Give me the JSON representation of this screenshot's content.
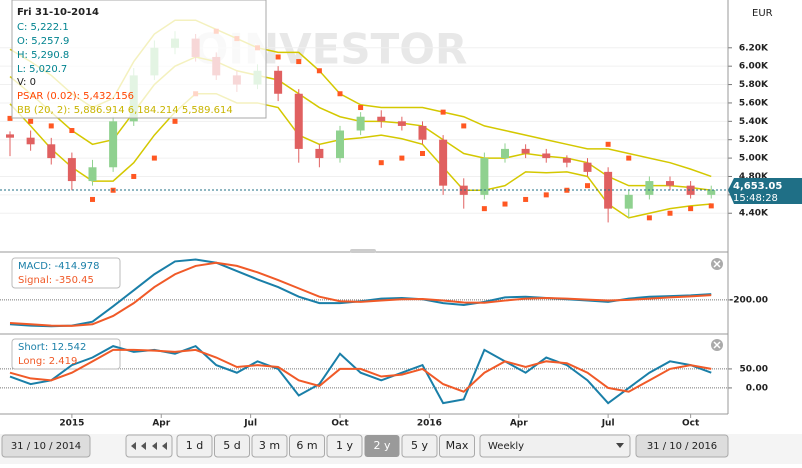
{
  "tooltip": {
    "date": "Fri 31-10-2014",
    "close": "C: 5,222.1",
    "open": "O: 5,257.9",
    "high": "H: 5,290.8",
    "low": "L: 5,020.7",
    "volume": "V: 0",
    "psar": "PSAR (0.02): 5,432.156",
    "bb": "BB (20, 2): 5,886.914 6,184.214 5,589.614"
  },
  "watermark": "OINVESTOR",
  "chart_data": [
    {
      "type": "candlestick",
      "currency": "EUR",
      "x": [
        0,
        3,
        6,
        9,
        12,
        15,
        18,
        21,
        24,
        27,
        30,
        33,
        36,
        39,
        42,
        45,
        48,
        51,
        54,
        57,
        60,
        63,
        66,
        69,
        72,
        75,
        78,
        81,
        84,
        87,
        90,
        93,
        96,
        99,
        102
      ],
      "open": [
        5258,
        5222,
        5150,
        5000,
        4750,
        4900,
        5400,
        5900,
        6200,
        6300,
        6100,
        5900,
        5800,
        5950,
        5700,
        5100,
        5000,
        5300,
        5450,
        5400,
        5350,
        5200,
        4700,
        4600,
        5000,
        5100,
        5050,
        5000,
        4950,
        4850,
        4450,
        4600,
        4750,
        4700,
        4600
      ],
      "high": [
        5291,
        5300,
        5220,
        5060,
        4980,
        5450,
        5980,
        6280,
        6380,
        6350,
        6150,
        5950,
        6020,
        6000,
        5750,
        5150,
        5350,
        5500,
        5520,
        5450,
        5400,
        5250,
        4780,
        5060,
        5160,
        5150,
        5100,
        5030,
        5000,
        4900,
        4650,
        4800,
        4800,
        4750,
        4700
      ],
      "low": [
        5021,
        5080,
        4930,
        4650,
        4700,
        4850,
        5350,
        5850,
        6130,
        6050,
        5850,
        5720,
        5750,
        5620,
        4950,
        4900,
        4950,
        5250,
        5330,
        5300,
        5150,
        4600,
        4450,
        4550,
        4950,
        5000,
        4950,
        4900,
        4800,
        4300,
        4350,
        4550,
        4650,
        4560,
        4560
      ],
      "close": [
        5222,
        5150,
        5000,
        4750,
        4900,
        5400,
        5900,
        6200,
        6300,
        6100,
        5900,
        5800,
        5950,
        5700,
        5100,
        5000,
        5300,
        5450,
        5400,
        5350,
        5200,
        4700,
        4600,
        5000,
        5100,
        5050,
        5000,
        4950,
        4850,
        4450,
        4600,
        4750,
        4700,
        4600,
        4653
      ],
      "psar": [
        5432,
        5400,
        5350,
        5300,
        4550,
        4650,
        4800,
        5000,
        5400,
        5700,
        6380,
        6300,
        6200,
        6100,
        6050,
        5950,
        5700,
        5550,
        4950,
        5000,
        5050,
        5500,
        5350,
        4450,
        4500,
        4550,
        4600,
        4650,
        4700,
        5150,
        5000,
        4350,
        4400,
        4450,
        4480
      ],
      "bb_upper": [
        6184,
        6050,
        5900,
        5700,
        5550,
        5650,
        6050,
        6350,
        6500,
        6500,
        6400,
        6300,
        6200,
        6150,
        6150,
        5950,
        5700,
        5580,
        5550,
        5550,
        5550,
        5500,
        5450,
        5350,
        5300,
        5250,
        5200,
        5150,
        5100,
        5100,
        5050,
        5000,
        4950,
        4880,
        4800
      ],
      "bb_middle": [
        5887,
        5700,
        5500,
        5300,
        5150,
        5200,
        5500,
        5800,
        6000,
        6100,
        6050,
        5950,
        5900,
        5850,
        5700,
        5550,
        5450,
        5400,
        5400,
        5380,
        5350,
        5200,
        5050,
        5000,
        5000,
        5050,
        5020,
        5000,
        4950,
        4800,
        4700,
        4700,
        4700,
        4680,
        4650
      ],
      "bb_lower": [
        5590,
        5350,
        5100,
        4900,
        4750,
        4750,
        4950,
        5250,
        5500,
        5700,
        5700,
        5600,
        5600,
        5550,
        5250,
        5150,
        5200,
        5220,
        5250,
        5210,
        5150,
        4900,
        4650,
        4650,
        4700,
        4850,
        4840,
        4850,
        4800,
        4500,
        4350,
        4400,
        4450,
        4480,
        4500
      ],
      "up_color": "#8fd18f",
      "down_color": "#e06060",
      "psar_color": "#ff5722",
      "bb_color": "#d4c800",
      "xlim": [
        0,
        104
      ],
      "xticks": [
        {
          "value": 9,
          "label": "2015"
        },
        {
          "value": 22,
          "label": "Apr"
        },
        {
          "value": 35,
          "label": "Jul"
        },
        {
          "value": 48,
          "label": "Oct"
        },
        {
          "value": 61,
          "label": "2016"
        },
        {
          "value": 74,
          "label": "Apr"
        },
        {
          "value": 87,
          "label": "Jul"
        },
        {
          "value": 99,
          "label": "Oct"
        }
      ],
      "ylim": [
        4000,
        6720
      ],
      "yticks": [
        {
          "value": 4400,
          "label": "4.40K"
        },
        {
          "value": 4600,
          "label": "4.60K"
        },
        {
          "value": 4800,
          "label": "4.80K"
        },
        {
          "value": 5000,
          "label": "5.00K"
        },
        {
          "value": 5200,
          "label": "5.20K"
        },
        {
          "value": 5400,
          "label": "5.40K"
        },
        {
          "value": 5600,
          "label": "5.60K"
        },
        {
          "value": 5800,
          "label": "5.80K"
        },
        {
          "value": 6000,
          "label": "6.00K"
        },
        {
          "value": 6200,
          "label": "6.20K"
        }
      ],
      "last_price": {
        "value": 4653.05,
        "label": "4,653.05"
      },
      "last_time": "15:48:28"
    },
    {
      "type": "line",
      "x": [
        0,
        3,
        6,
        9,
        12,
        15,
        18,
        21,
        24,
        27,
        30,
        33,
        36,
        39,
        42,
        45,
        48,
        51,
        54,
        57,
        60,
        63,
        66,
        69,
        72,
        75,
        78,
        81,
        84,
        87,
        90,
        93,
        96,
        99,
        102
      ],
      "xlim": [
        0,
        104
      ],
      "ylim": [
        -700,
        500
      ],
      "yticks": [
        {
          "value": -200,
          "label": "-200.00"
        }
      ],
      "series": [
        {
          "name": "MACD: -414.978",
          "color": "#1a7fa8",
          "values": [
            -580,
            -600,
            -610,
            -600,
            -540,
            -300,
            -50,
            200,
            400,
            430,
            380,
            250,
            120,
            0,
            -150,
            -250,
            -250,
            -220,
            -180,
            -170,
            -190,
            -250,
            -280,
            -230,
            -160,
            -150,
            -170,
            -190,
            -210,
            -230,
            -180,
            -150,
            -140,
            -130,
            -110
          ]
        },
        {
          "name": "Signal: -350.45",
          "color": "#f05a28",
          "values": [
            -560,
            -580,
            -600,
            -605,
            -580,
            -450,
            -250,
            0,
            200,
            330,
            380,
            330,
            230,
            110,
            -20,
            -150,
            -220,
            -230,
            -210,
            -190,
            -185,
            -210,
            -240,
            -245,
            -210,
            -180,
            -170,
            -180,
            -195,
            -210,
            -200,
            -180,
            -160,
            -145,
            -125
          ]
        }
      ]
    },
    {
      "type": "line",
      "x": [
        0,
        3,
        6,
        9,
        12,
        15,
        18,
        21,
        24,
        27,
        30,
        33,
        36,
        39,
        42,
        45,
        48,
        51,
        54,
        57,
        60,
        63,
        66,
        69,
        72,
        75,
        78,
        81,
        84,
        87,
        90,
        93,
        96,
        99,
        102
      ],
      "xlim": [
        0,
        104
      ],
      "ylim": [
        -66,
        134
      ],
      "yticks": [
        {
          "value": 50,
          "label": "50.00"
        },
        {
          "value": 0,
          "label": "0.00"
        }
      ],
      "series": [
        {
          "name": "Short: 12.542",
          "color": "#1a7fa8",
          "values": [
            30,
            10,
            20,
            60,
            80,
            110,
            95,
            100,
            90,
            110,
            60,
            40,
            70,
            50,
            -20,
            10,
            90,
            40,
            20,
            40,
            60,
            -40,
            -30,
            100,
            70,
            40,
            80,
            60,
            20,
            -40,
            0,
            40,
            70,
            60,
            40
          ]
        },
        {
          "name": "Long: 2.419",
          "color": "#f05a28",
          "values": [
            40,
            25,
            20,
            40,
            70,
            100,
            100,
            98,
            95,
            100,
            80,
            55,
            60,
            55,
            20,
            5,
            50,
            50,
            30,
            35,
            50,
            10,
            -10,
            40,
            70,
            55,
            70,
            65,
            40,
            0,
            -10,
            20,
            50,
            60,
            50
          ]
        }
      ]
    }
  ],
  "toolbar": {
    "start_date": "31 / 10 / 2014",
    "ranges": [
      "1 d",
      "5 d",
      "3 m",
      "6 m",
      "1 y",
      "2 y",
      "5 y",
      "Max"
    ],
    "selected_range": 5,
    "interval": "Weekly",
    "end_date": "31 / 10 / 2016"
  }
}
